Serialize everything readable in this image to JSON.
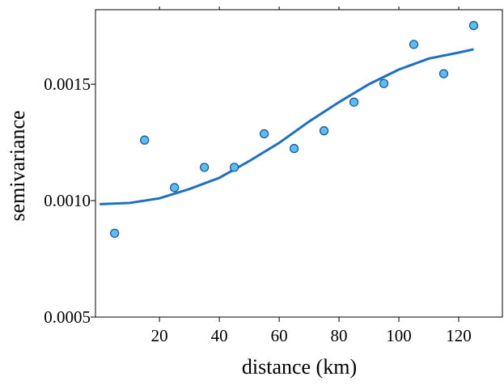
{
  "chart_data": {
    "type": "scatter",
    "xlabel": "distance (km)",
    "ylabel": "semivariance",
    "xlim": [
      -1.4,
      134.6
    ],
    "ylim": [
      0.0005,
      0.00182
    ],
    "xticks": [
      20,
      40,
      60,
      80,
      100,
      120
    ],
    "yticks": [
      0.0005,
      {
        "value": 0.001,
        "label": "0.0010"
      },
      {
        "value": 0.0015,
        "label": "0.0015"
      }
    ],
    "series": [
      {
        "type": "scatter",
        "color": "#5bbdf0",
        "x": [
          5,
          15,
          25,
          35,
          45,
          55,
          65,
          75,
          85,
          95,
          105,
          115,
          125
        ],
        "values": [
          0.00086,
          0.00126,
          0.001056,
          0.001143,
          0.001143,
          0.001287,
          0.001224,
          0.0013,
          0.001423,
          0.001503,
          0.001671,
          0.001545,
          0.001752
        ]
      },
      {
        "type": "line",
        "color": "#1f6fc0",
        "x": [
          0,
          10,
          20,
          30,
          40,
          50,
          60,
          70,
          80,
          90,
          100,
          110,
          120,
          125
        ],
        "values": [
          0.000985,
          0.00099,
          0.00101,
          0.00105,
          0.001098,
          0.00117,
          0.001248,
          0.00134,
          0.001423,
          0.0015,
          0.001563,
          0.00161,
          0.001636,
          0.00165
        ]
      }
    ]
  }
}
